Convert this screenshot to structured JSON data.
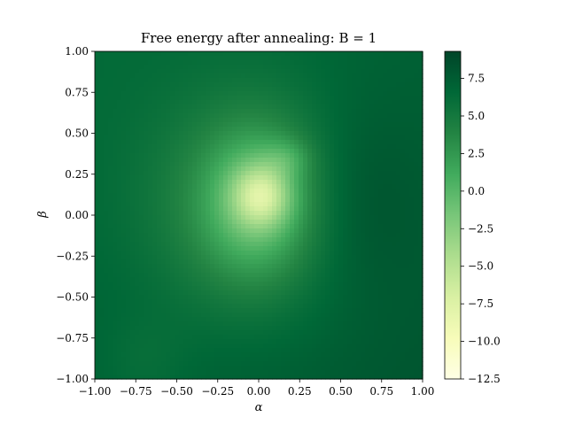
{
  "chart_data": {
    "type": "heatmap",
    "title": "Free energy after annealing: B = 1",
    "xlabel": "α",
    "ylabel": "β",
    "xlim": [
      -1.0,
      1.0
    ],
    "ylim": [
      -1.0,
      1.0
    ],
    "x_ticks": [
      "−1.00",
      "−0.75",
      "−0.50",
      "−0.25",
      "0.00",
      "0.25",
      "0.50",
      "0.75",
      "1.00"
    ],
    "y_ticks": [
      "−1.00",
      "−0.75",
      "−0.50",
      "−0.25",
      "0.00",
      "0.25",
      "0.50",
      "0.75",
      "1.00"
    ],
    "colorbar": {
      "range": [
        -12.5,
        9.3
      ],
      "ticks": [
        "−12.5",
        "−10.0",
        "−7.5",
        "−5.0",
        "−2.5",
        "0.0",
        "2.5",
        "5.0",
        "7.5"
      ],
      "colormap": "YlGn",
      "colors": [
        "#ffffe5",
        "#f7fcb9",
        "#d9f0a3",
        "#addd8e",
        "#78c679",
        "#41ab5d",
        "#238443",
        "#006837",
        "#004529"
      ]
    },
    "field": {
      "background": 7.2,
      "minimum": -11.5,
      "minimum_location": [
        0.0,
        0.15
      ],
      "basins": [
        {
          "center": [
            -0.05,
            0.05
          ],
          "sigma": [
            0.45,
            0.5
          ],
          "depth": -4.0
        },
        {
          "center": [
            -0.02,
            0.08
          ],
          "sigma": [
            0.22,
            0.3
          ],
          "depth": -5.0
        },
        {
          "center": [
            0.02,
            0.12
          ],
          "sigma": [
            0.12,
            0.13
          ],
          "depth": -6.5
        },
        {
          "center": [
            0.18,
            0.35
          ],
          "sigma": [
            0.1,
            0.08
          ],
          "depth": -2.0
        },
        {
          "center": [
            -0.7,
            -0.9
          ],
          "sigma": [
            0.2,
            0.2
          ],
          "depth": -1.0
        },
        {
          "center": [
            0.6,
            0.1
          ],
          "sigma": [
            0.25,
            0.4
          ],
          "depth": 1.5
        }
      ]
    }
  }
}
